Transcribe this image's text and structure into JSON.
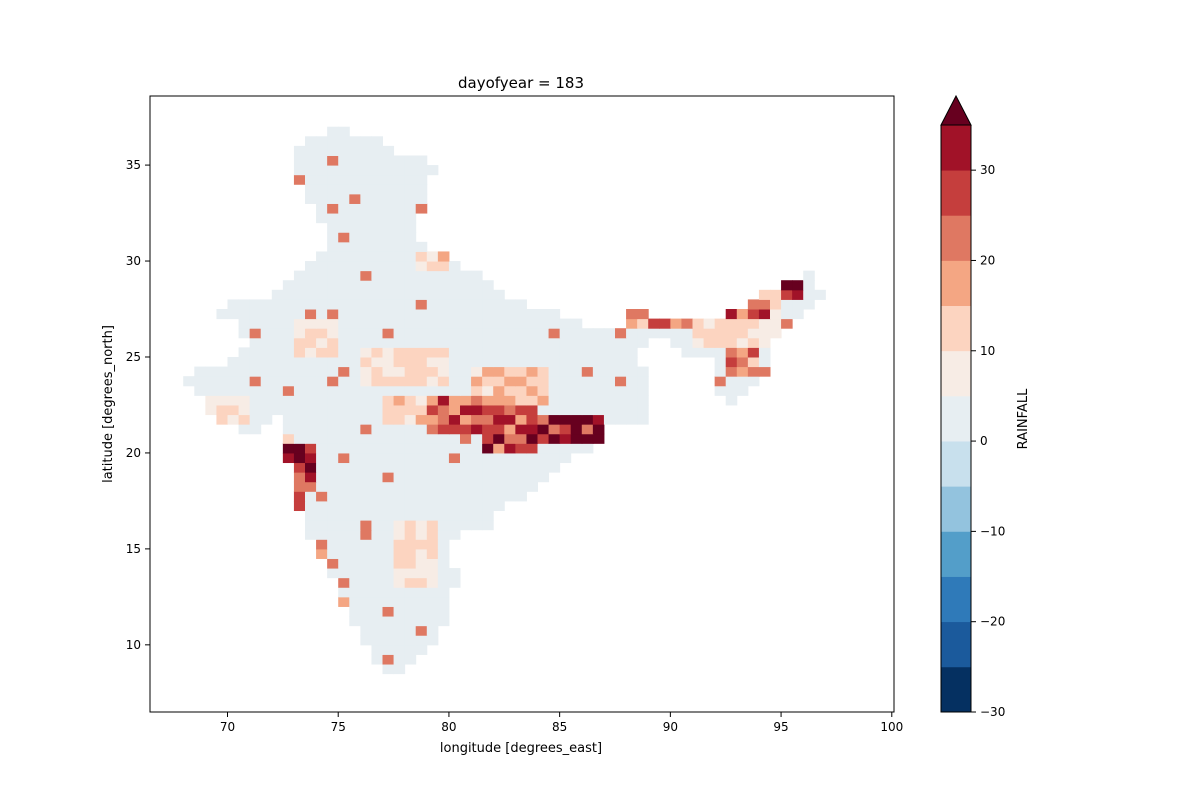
{
  "chart_data": {
    "type": "heatmap",
    "title": "dayofyear = 183",
    "xlabel": "longitude [degrees_east]",
    "ylabel": "latitude [degrees_north]",
    "colorbar_label": "RAINFALL",
    "xlim": [
      66.5,
      100.1
    ],
    "ylim": [
      6.5,
      38.6
    ],
    "xticks": [
      70,
      75,
      80,
      85,
      90,
      95,
      100
    ],
    "yticks": [
      10,
      15,
      20,
      25,
      30,
      35
    ],
    "grid": false,
    "colorbar": {
      "levels": [
        -30,
        -25,
        -20,
        -15,
        -10,
        -5,
        0,
        5,
        10,
        15,
        20,
        25,
        30,
        35
      ],
      "ticks": [
        -30,
        -20,
        -10,
        0,
        10,
        20,
        30
      ],
      "colors": [
        "#053061",
        "#1b5a9c",
        "#2f7ab9",
        "#539ec9",
        "#93c3de",
        "#c8e0ed",
        "#e7eef2",
        "#f7ece5",
        "#fcd4c0",
        "#f4a683",
        "#df7862",
        "#c53e3d",
        "#a11228"
      ],
      "extend_color": "#67001f",
      "extend": "max"
    },
    "background_value": 2,
    "heavy_rain_regions": [
      {
        "lon": [
          72.7,
          73.8
        ],
        "lat": [
          18.0,
          20.5
        ],
        "value": 40
      },
      {
        "lon": [
          73.0,
          73.6
        ],
        "lat": [
          15.5,
          18.0
        ],
        "value": 30
      },
      {
        "lon": [
          73.5,
          74.5
        ],
        "lat": [
          12.0,
          15.5
        ],
        "value": 25
      },
      {
        "lon": [
          74.5,
          75.5
        ],
        "lat": [
          11.0,
          12.5
        ],
        "value": 18
      },
      {
        "lon": [
          72.0,
          73.0
        ],
        "lat": [
          20.0,
          21.0
        ],
        "value": 12
      },
      {
        "lon": [
          79.0,
          81.5
        ],
        "lat": [
          21.0,
          23.0
        ],
        "value": 28
      },
      {
        "lon": [
          81.5,
          84.0
        ],
        "lat": [
          20.0,
          22.5
        ],
        "value": 32
      },
      {
        "lon": [
          84.0,
          86.8
        ],
        "lat": [
          20.5,
          22.0
        ],
        "value": 36
      },
      {
        "lon": [
          81.0,
          84.5
        ],
        "lat": [
          22.5,
          24.5
        ],
        "value": 16
      },
      {
        "lon": [
          77.0,
          79.0
        ],
        "lat": [
          21.5,
          23.0
        ],
        "value": 14
      },
      {
        "lon": [
          76.0,
          80.0
        ],
        "lat": [
          23.5,
          25.5
        ],
        "value": 12
      },
      {
        "lon": [
          73.0,
          75.0
        ],
        "lat": [
          25.0,
          27.0
        ],
        "value": 12
      },
      {
        "lon": [
          68.5,
          71.0
        ],
        "lat": [
          21.5,
          23.0
        ],
        "value": 12
      },
      {
        "lon": [
          77.5,
          79.5
        ],
        "lat": [
          13.0,
          16.5
        ],
        "value": 12
      },
      {
        "lon": [
          78.5,
          80.0
        ],
        "lat": [
          29.5,
          30.5
        ],
        "value": 14
      },
      {
        "lon": [
          87.5,
          89.0
        ],
        "lat": [
          26.5,
          27.8
        ],
        "value": 18
      },
      {
        "lon": [
          89.0,
          91.0
        ],
        "lat": [
          26.3,
          27.2
        ],
        "value": 30
      },
      {
        "lon": [
          92.5,
          94.0
        ],
        "lat": [
          24.0,
          25.5
        ],
        "value": 22
      },
      {
        "lon": [
          92.0,
          94.5
        ],
        "lat": [
          26.8,
          27.8
        ],
        "value": 30
      },
      {
        "lon": [
          94.8,
          96.2
        ],
        "lat": [
          28.0,
          29.6
        ],
        "value": 40
      },
      {
        "lon": [
          91.0,
          95.0
        ],
        "lat": [
          25.5,
          28.5
        ],
        "value": 12
      }
    ]
  }
}
